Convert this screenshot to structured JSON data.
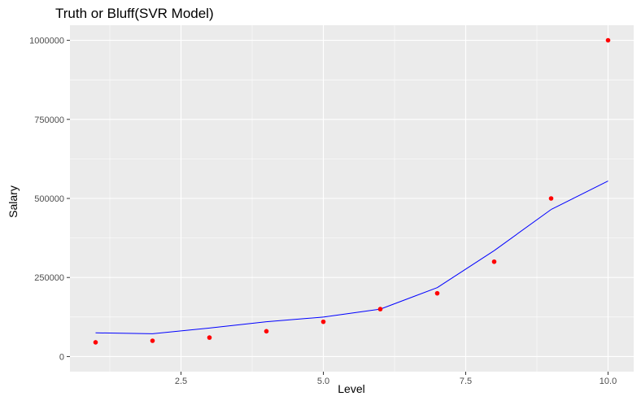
{
  "chart_data": {
    "type": "scatter",
    "title": "Truth or Bluff(SVR Model)",
    "xlabel": "Level",
    "ylabel": "Salary",
    "xlim": [
      0.55,
      10.45
    ],
    "ylim": [
      -47750,
      1047750
    ],
    "x_ticks": [
      2.5,
      5.0,
      7.5,
      10.0
    ],
    "x_tick_labels": [
      "2.5",
      "5.0",
      "7.5",
      "10.0"
    ],
    "y_ticks": [
      0,
      250000,
      500000,
      750000,
      1000000
    ],
    "y_tick_labels": [
      "0",
      "250000",
      "500000",
      "750000",
      "1000000"
    ],
    "grid": true,
    "legend": "none",
    "panel_color": "#EBEBEB",
    "grid_color": "#FFFFFF",
    "series": [
      {
        "kind": "points",
        "color": "#FF0000",
        "x": [
          1,
          2,
          3,
          4,
          5,
          6,
          7,
          8,
          9,
          10
        ],
        "y": [
          45000,
          50000,
          60000,
          80000,
          110000,
          150000,
          200000,
          300000,
          500000,
          1000000
        ]
      },
      {
        "kind": "line",
        "color": "#0000FF",
        "x": [
          1,
          2,
          3,
          4,
          5,
          6,
          7,
          8,
          9,
          10
        ],
        "y": [
          75000,
          72000,
          90000,
          110000,
          125000,
          150000,
          218000,
          335000,
          465000,
          555000
        ]
      }
    ]
  }
}
